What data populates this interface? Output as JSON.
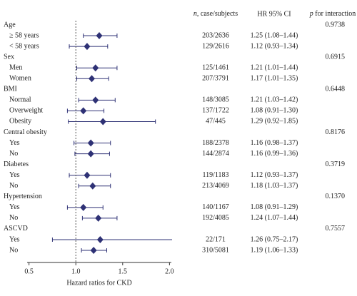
{
  "chart_data": {
    "type": "forest",
    "headers": {
      "n_italic": "n",
      "n_rest": ", case/subjects",
      "hr": "HR 95% CI",
      "p_italic": "p",
      "p_rest": " for interaction"
    },
    "xlabel": "Hazard ratios for CKD",
    "xlim": [
      0.48,
      2.02
    ],
    "xticks": [
      0.5,
      {
        "value": 1,
        "label": "1.0"
      },
      1.5,
      {
        "value": 2,
        "label": "2.0"
      }
    ],
    "reference": 1,
    "color": "#2e3175",
    "groups": [
      {
        "label": "Age",
        "p": "0.9738",
        "rows": [
          {
            "label": "≥ 58 years",
            "n": "203/2636",
            "ci": "1.25 (1.08–1.44)",
            "hr": 1.25,
            "lo": 1.08,
            "hi": 1.44
          },
          {
            "label": "< 58 years",
            "n": "129/2616",
            "ci": "1.12 (0.93–1.34)",
            "hr": 1.12,
            "lo": 0.93,
            "hi": 1.34
          }
        ]
      },
      {
        "label": "Sex",
        "p": "0.6915",
        "rows": [
          {
            "label": "Men",
            "n": "125/1461",
            "ci": "1.21 (1.01–1.44)",
            "hr": 1.21,
            "lo": 1.01,
            "hi": 1.44
          },
          {
            "label": "Women",
            "n": "207/3791",
            "ci": "1.17 (1.01–1.35)",
            "hr": 1.17,
            "lo": 1.01,
            "hi": 1.35
          }
        ]
      },
      {
        "label": "BMI",
        "p": "0.6448",
        "rows": [
          {
            "label": "Normal",
            "n": "148/3085",
            "ci": "1.21 (1.03–1.42)",
            "hr": 1.21,
            "lo": 1.03,
            "hi": 1.42
          },
          {
            "label": "Overweight",
            "n": "137/1722",
            "ci": "1.08 (0.91–1.30)",
            "hr": 1.08,
            "lo": 0.91,
            "hi": 1.3
          },
          {
            "label": "Obesity",
            "n": "47/445",
            "ci": "1.29 (0.92–1.85)",
            "hr": 1.29,
            "lo": 0.92,
            "hi": 1.85
          }
        ]
      },
      {
        "label": "Central obesity",
        "p": "0.8176",
        "rows": [
          {
            "label": "Yes",
            "n": "188/2378",
            "ci": "1.16 (0.98–1.37)",
            "hr": 1.16,
            "lo": 0.98,
            "hi": 1.37
          },
          {
            "label": "No",
            "n": "144/2874",
            "ci": "1.16 (0.99–1.36)",
            "hr": 1.16,
            "lo": 0.99,
            "hi": 1.36
          }
        ]
      },
      {
        "label": "Diabetes",
        "p": "0.3719",
        "rows": [
          {
            "label": "Yes",
            "n": "119/1183",
            "ci": "1.12 (0.93–1.37)",
            "hr": 1.12,
            "lo": 0.93,
            "hi": 1.37
          },
          {
            "label": "No",
            "n": "213/4069",
            "ci": "1.18 (1.03–1.37)",
            "hr": 1.18,
            "lo": 1.03,
            "hi": 1.37
          }
        ]
      },
      {
        "label": "Hypertension",
        "p": "0.1370",
        "rows": [
          {
            "label": "Yes",
            "n": "140/1167",
            "ci": "1.08 (0.91–1.29)",
            "hr": 1.08,
            "lo": 0.91,
            "hi": 1.29
          },
          {
            "label": "No",
            "n": "192/4085",
            "ci": "1.24 (1.07–1.44)",
            "hr": 1.24,
            "lo": 1.07,
            "hi": 1.44
          }
        ]
      },
      {
        "label": "ASCVD",
        "p": "0.7557",
        "rows": [
          {
            "label": "Yes",
            "n": "22/171",
            "ci": "1.26 (0.75–2.17)",
            "hr": 1.26,
            "lo": 0.75,
            "hi": 2.17
          },
          {
            "label": "No",
            "n": "310/5081",
            "ci": "1.19 (1.06–1.33)",
            "hr": 1.19,
            "lo": 1.06,
            "hi": 1.33
          }
        ]
      }
    ]
  }
}
